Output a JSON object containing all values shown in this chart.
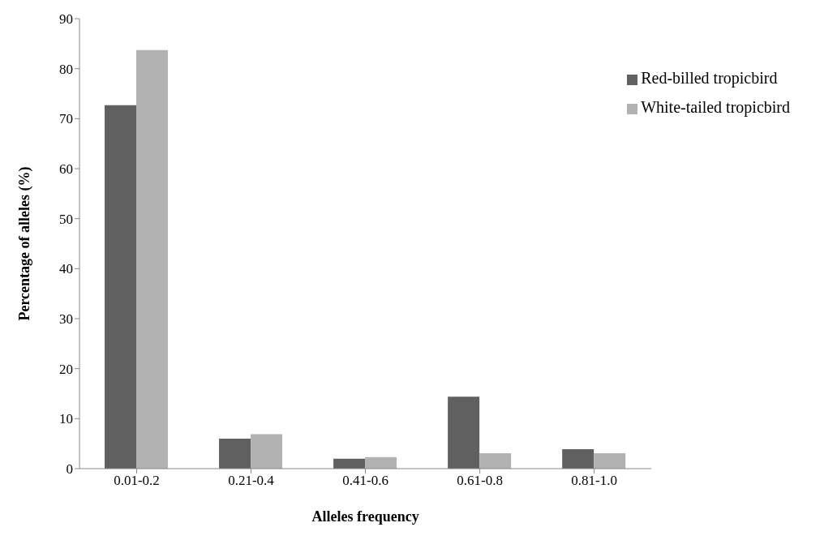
{
  "chart_data": {
    "type": "bar",
    "xlabel": "Alleles frequency",
    "ylabel": "Percentage of alleles (%)",
    "categories": [
      "0.01-0.2",
      "0.21-0.4",
      "0.41-0.6",
      "0.61-0.8",
      "0.81-1.0"
    ],
    "series": [
      {
        "name": "Red-billed tropicbird",
        "color": "#606060",
        "values": [
          72.7,
          6.0,
          2.0,
          14.4,
          3.9
        ]
      },
      {
        "name": "White-tailed tropicbird",
        "color": "#b2b2b2",
        "values": [
          83.7,
          6.9,
          2.3,
          3.1,
          3.1
        ]
      }
    ],
    "ylim": [
      0,
      90
    ],
    "yticks": [
      0,
      10,
      20,
      30,
      40,
      50,
      60,
      70,
      80,
      90
    ],
    "grid": false,
    "legend": "top right"
  }
}
